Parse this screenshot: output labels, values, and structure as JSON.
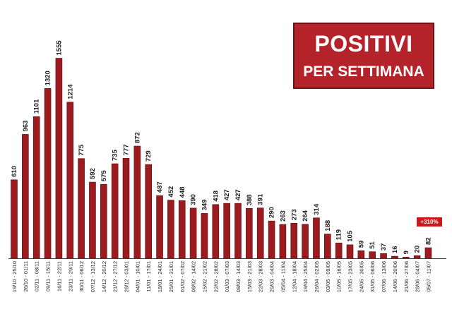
{
  "title": {
    "line1": "POSITIVI",
    "line2": "PER SETTIMANA"
  },
  "badge": "+310%",
  "colors": {
    "bar": "#9b1b1f",
    "bar_edge": "#5c0e12",
    "title_bg": "#b5232a",
    "badge_bg": "#c9181e",
    "axis": "#444444"
  },
  "chart_data": {
    "type": "bar",
    "title": "POSITIVI PER SETTIMANA",
    "categories": [
      "19/10 - 25/10",
      "26/10 - 01/11",
      "02/11 - 08/11",
      "09/11 - 15/11",
      "16/11 - 22/11",
      "23/11 - 29/11",
      "30/11 - 06/12",
      "07/12 - 13/12",
      "14/12 - 20/12",
      "21/12 - 27/12",
      "28/12 - 03/01",
      "04/01 - 10/01",
      "11/01 - 17/01",
      "18/01 - 24/01",
      "25/01 - 31/01",
      "01/02 - 07/02",
      "08/02 - 14/02",
      "15/02 - 21/02",
      "22/02 - 28/02",
      "01/03 - 07/03",
      "08/03 - 14/03",
      "15/03 - 21/03",
      "22/03 - 28/03",
      "29/03 - 04/04",
      "05/04 - 11/04",
      "12/04 - 18/04",
      "19/04 - 25/04",
      "26/04 - 02/05",
      "03/05 - 09/05",
      "10/05 - 16/05",
      "17/05 - 23/05",
      "24/05 - 30/05",
      "31/05 - 06/06",
      "07/06 - 13/06",
      "14/06 - 20/06",
      "21/06 - 27/06",
      "28/06 - 04/07",
      "05/07 - 11/07"
    ],
    "values": [
      610,
      963,
      1101,
      1320,
      1555,
      1214,
      775,
      592,
      575,
      735,
      777,
      872,
      729,
      487,
      452,
      448,
      390,
      349,
      418,
      427,
      427,
      388,
      391,
      290,
      263,
      273,
      264,
      314,
      188,
      119,
      105,
      59,
      51,
      37,
      16,
      9,
      20,
      82
    ],
    "ylim": [
      0,
      1600
    ],
    "xlabel": "",
    "ylabel": "",
    "grid": false,
    "legend": "none"
  }
}
